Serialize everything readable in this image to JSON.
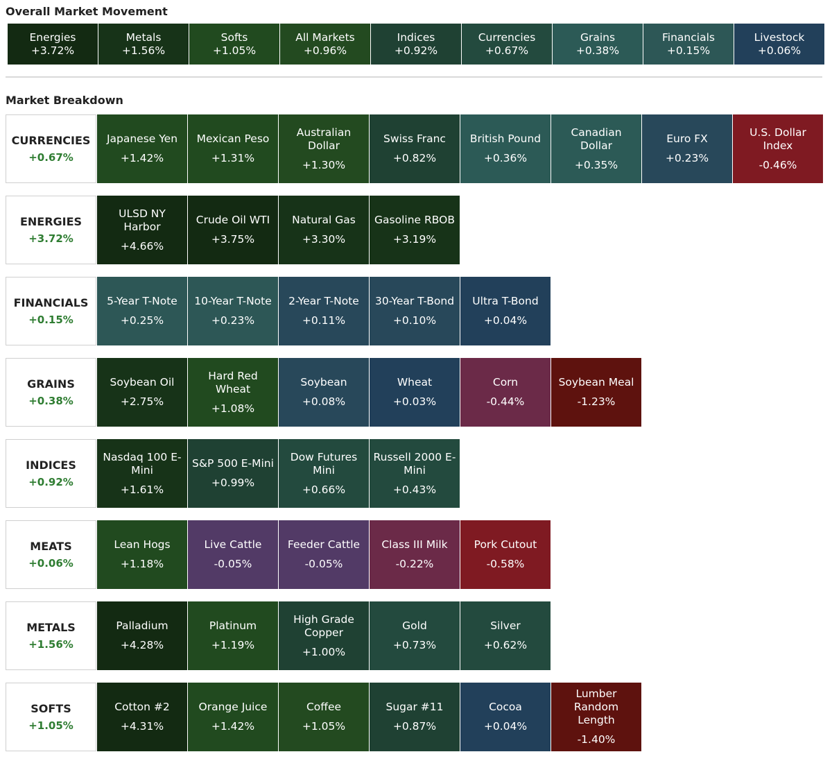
{
  "overall": {
    "title": "Overall Market Movement",
    "tiles": [
      {
        "name": "Energies",
        "value": "+3.72%",
        "color": "#132a12"
      },
      {
        "name": "Metals",
        "value": "+1.56%",
        "color": "#173318"
      },
      {
        "name": "Softs",
        "value": "+1.05%",
        "color": "#214a1f"
      },
      {
        "name": "All Markets",
        "value": "+0.96%",
        "color": "#234a20"
      },
      {
        "name": "Indices",
        "value": "+0.92%",
        "color": "#1f4133"
      },
      {
        "name": "Currencies",
        "value": "+0.67%",
        "color": "#234a3e"
      },
      {
        "name": "Grains",
        "value": "+0.38%",
        "color": "#2c5a56"
      },
      {
        "name": "Financials",
        "value": "+0.15%",
        "color": "#2d5756"
      },
      {
        "name": "Livestock",
        "value": "+0.06%",
        "color": "#22405a"
      }
    ]
  },
  "breakdown": {
    "title": "Market Breakdown",
    "groups": [
      {
        "name": "CURRENCIES",
        "value": "+0.67%",
        "tiles": [
          {
            "name": "Japanese Yen",
            "value": "+1.42%",
            "color": "#214a1f"
          },
          {
            "name": "Mexican Peso",
            "value": "+1.31%",
            "color": "#214a1f"
          },
          {
            "name": "Australian Dollar",
            "value": "+1.30%",
            "color": "#234a20"
          },
          {
            "name": "Swiss Franc",
            "value": "+0.82%",
            "color": "#1f4133"
          },
          {
            "name": "British Pound",
            "value": "+0.36%",
            "color": "#2c5a56"
          },
          {
            "name": "Canadian Dollar",
            "value": "+0.35%",
            "color": "#2c5a56"
          },
          {
            "name": "Euro FX",
            "value": "+0.23%",
            "color": "#28485a"
          },
          {
            "name": "U.S. Dollar Index",
            "value": "-0.46%",
            "color": "#7f1a22"
          }
        ]
      },
      {
        "name": "ENERGIES",
        "value": "+3.72%",
        "tiles": [
          {
            "name": "ULSD NY Harbor",
            "value": "+4.66%",
            "color": "#132a12"
          },
          {
            "name": "Crude Oil WTI",
            "value": "+3.75%",
            "color": "#132a12"
          },
          {
            "name": "Natural Gas",
            "value": "+3.30%",
            "color": "#173318"
          },
          {
            "name": "Gasoline RBOB",
            "value": "+3.19%",
            "color": "#173318"
          }
        ]
      },
      {
        "name": "FINANCIALS",
        "value": "+0.15%",
        "tiles": [
          {
            "name": "5-Year T-Note",
            "value": "+0.25%",
            "color": "#2d5756"
          },
          {
            "name": "10-Year T-Note",
            "value": "+0.23%",
            "color": "#2d5756"
          },
          {
            "name": "2-Year T-Note",
            "value": "+0.11%",
            "color": "#28485a"
          },
          {
            "name": "30-Year T-Bond",
            "value": "+0.10%",
            "color": "#28485a"
          },
          {
            "name": "Ultra T-Bond",
            "value": "+0.04%",
            "color": "#22405a"
          }
        ]
      },
      {
        "name": "GRAINS",
        "value": "+0.38%",
        "tiles": [
          {
            "name": "Soybean Oil",
            "value": "+2.75%",
            "color": "#173318"
          },
          {
            "name": "Hard Red Wheat",
            "value": "+1.08%",
            "color": "#214a1f"
          },
          {
            "name": "Soybean",
            "value": "+0.08%",
            "color": "#28485a"
          },
          {
            "name": "Wheat",
            "value": "+0.03%",
            "color": "#22405a"
          },
          {
            "name": "Corn",
            "value": "-0.44%",
            "color": "#6b2a48"
          },
          {
            "name": "Soybean Meal",
            "value": "-1.23%",
            "color": "#5e120e"
          }
        ]
      },
      {
        "name": "INDICES",
        "value": "+0.92%",
        "tiles": [
          {
            "name": "Nasdaq 100 E-Mini",
            "value": "+1.61%",
            "color": "#173318"
          },
          {
            "name": "S&P 500 E-Mini",
            "value": "+0.99%",
            "color": "#1f4133"
          },
          {
            "name": "Dow Futures Mini",
            "value": "+0.66%",
            "color": "#234a3e"
          },
          {
            "name": "Russell 2000 E-Mini",
            "value": "+0.43%",
            "color": "#234a3e"
          }
        ]
      },
      {
        "name": "MEATS",
        "value": "+0.06%",
        "tiles": [
          {
            "name": "Lean Hogs",
            "value": "+1.18%",
            "color": "#214a1f"
          },
          {
            "name": "Live Cattle",
            "value": "-0.05%",
            "color": "#523a66"
          },
          {
            "name": "Feeder Cattle",
            "value": "-0.05%",
            "color": "#523a66"
          },
          {
            "name": "Class III Milk",
            "value": "-0.22%",
            "color": "#6b2a48"
          },
          {
            "name": "Pork Cutout",
            "value": "-0.58%",
            "color": "#7f1a22"
          }
        ]
      },
      {
        "name": "METALS",
        "value": "+1.56%",
        "tiles": [
          {
            "name": "Palladium",
            "value": "+4.28%",
            "color": "#132a12"
          },
          {
            "name": "Platinum",
            "value": "+1.19%",
            "color": "#214a1f"
          },
          {
            "name": "High Grade Copper",
            "value": "+1.00%",
            "color": "#1f4133"
          },
          {
            "name": "Gold",
            "value": "+0.73%",
            "color": "#234a3e"
          },
          {
            "name": "Silver",
            "value": "+0.62%",
            "color": "#234a3e"
          }
        ]
      },
      {
        "name": "SOFTS",
        "value": "+1.05%",
        "tiles": [
          {
            "name": "Cotton #2",
            "value": "+4.31%",
            "color": "#132a12"
          },
          {
            "name": "Orange Juice",
            "value": "+1.42%",
            "color": "#214a1f"
          },
          {
            "name": "Coffee",
            "value": "+1.05%",
            "color": "#234a20"
          },
          {
            "name": "Sugar #11",
            "value": "+0.87%",
            "color": "#1f4133"
          },
          {
            "name": "Cocoa",
            "value": "+0.04%",
            "color": "#22405a"
          },
          {
            "name": "Lumber Random Length",
            "value": "-1.40%",
            "color": "#5e120e"
          }
        ]
      }
    ]
  }
}
